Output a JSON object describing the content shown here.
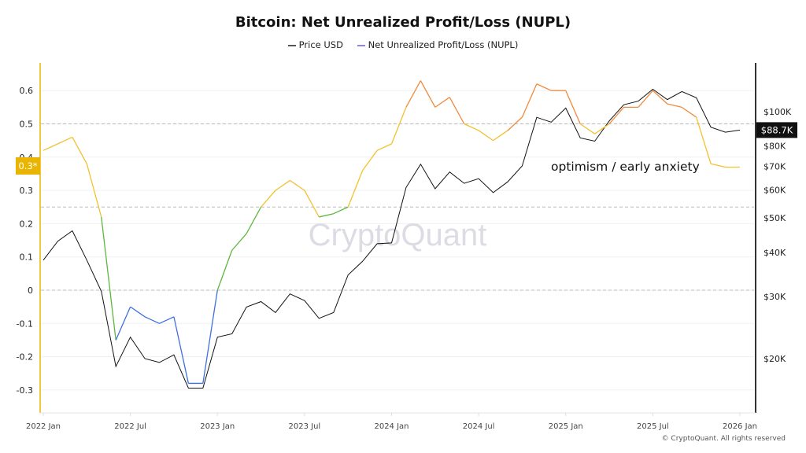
{
  "chart_data": {
    "type": "line",
    "title": "Bitcoin: Net Unrealized Profit/Loss (NUPL)",
    "legend": [
      "Price USD",
      "Net Unrealized Profit/Loss (NUPL)"
    ],
    "legend_placement": "top-center",
    "x_ticks": [
      "2022 Jan",
      "2022 Jul",
      "2023 Jan",
      "2023 Jul",
      "2024 Jan",
      "2024 Jul",
      "2025 Jan",
      "2025 Jul",
      "2026 Jan"
    ],
    "x": [
      "2022-01",
      "2022-02",
      "2022-03",
      "2022-04",
      "2022-05",
      "2022-06",
      "2022-07",
      "2022-08",
      "2022-09",
      "2022-10",
      "2022-11",
      "2022-12",
      "2023-01",
      "2023-02",
      "2023-03",
      "2023-04",
      "2023-05",
      "2023-06",
      "2023-07",
      "2023-08",
      "2023-09",
      "2023-10",
      "2023-11",
      "2023-12",
      "2024-01",
      "2024-02",
      "2024-03",
      "2024-04",
      "2024-05",
      "2024-06",
      "2024-07",
      "2024-08",
      "2024-09",
      "2024-10",
      "2024-11",
      "2024-12",
      "2025-01",
      "2025-02",
      "2025-03",
      "2025-04",
      "2025-05",
      "2025-06",
      "2025-07",
      "2025-08",
      "2025-09",
      "2025-10",
      "2025-11",
      "2025-12",
      "2026-01"
    ],
    "left_axis": {
      "ticks": [
        "0.6",
        "0.5",
        "0.4",
        "0.3",
        "0.2",
        "0.1",
        "0",
        "-0.1",
        "-0.2",
        "-0.3"
      ],
      "range": [
        -0.35,
        0.68
      ]
    },
    "right_axis": {
      "scale": "log",
      "ticks": [
        "$100K",
        "$80K",
        "$70K",
        "$60K",
        "$50K",
        "$40K",
        "$30K",
        "$20K"
      ],
      "tick_values": [
        100000,
        80000,
        70000,
        60000,
        50000,
        40000,
        30000,
        20000
      ]
    },
    "reference_lines": [
      0.5,
      0.25,
      0
    ],
    "zone_colors": {
      "below_0": "#3f6fe0",
      "0_to_0.25": "#5cb83c",
      "0.25_to_0.5": "#f2c12e",
      "above_0.5": "#f08a3c"
    },
    "series": [
      {
        "name": "Price USD",
        "axis": "right",
        "color": "#111111",
        "values": [
          38000,
          43000,
          46000,
          38000,
          31000,
          19000,
          23000,
          20000,
          19500,
          20500,
          16500,
          16500,
          23000,
          23500,
          28000,
          29000,
          27000,
          30500,
          29200,
          26000,
          27000,
          34500,
          37700,
          42300,
          42500,
          61000,
          71000,
          60500,
          67500,
          62700,
          64600,
          59000,
          63300,
          70200,
          96400,
          93400,
          102400,
          84300,
          82500,
          94200,
          104600,
          107100,
          115700,
          108200,
          114000,
          109500,
          90400,
          87500,
          88700
        ]
      },
      {
        "name": "Net Unrealized Profit/Loss (NUPL)",
        "axis": "left",
        "color": "#6b6bff",
        "values": [
          0.42,
          0.44,
          0.46,
          0.38,
          0.22,
          -0.15,
          -0.05,
          -0.08,
          -0.1,
          -0.08,
          -0.28,
          -0.28,
          0.0,
          0.12,
          0.17,
          0.25,
          0.3,
          0.33,
          0.3,
          0.22,
          0.23,
          0.25,
          0.36,
          0.42,
          0.44,
          0.55,
          0.63,
          0.55,
          0.58,
          0.5,
          0.48,
          0.45,
          0.48,
          0.52,
          0.62,
          0.6,
          0.6,
          0.5,
          0.47,
          0.5,
          0.55,
          0.55,
          0.6,
          0.56,
          0.55,
          0.52,
          0.38,
          0.37,
          0.37
        ]
      }
    ],
    "current_values": {
      "price": "$88.7K",
      "nupl": "0.3*"
    },
    "annotation": "optimism / early anxiety",
    "watermark": "CryptoQuant"
  },
  "copyright": "© CryptoQuant. All rights reserved"
}
